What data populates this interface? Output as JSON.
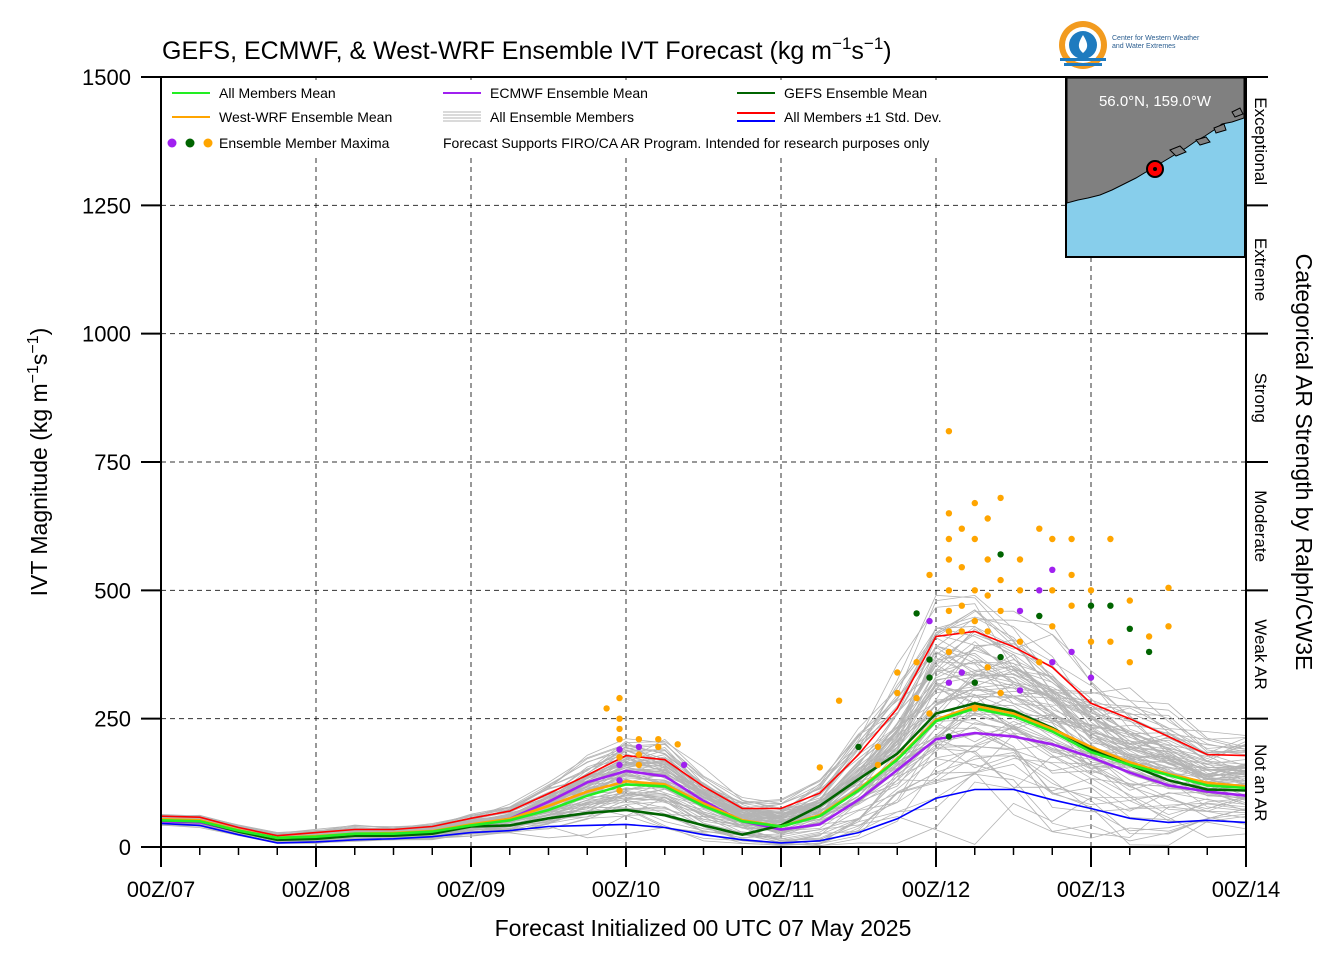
{
  "chart_data": {
    "type": "line",
    "title_main": "GEFS, ECMWF, & West-WRF Ensemble IVT Forecast (kg m",
    "title_sup1": "−1",
    "title_mid": "s",
    "title_sup2": "−1",
    "title_end": ")",
    "ylabel_main": "IVT Magnitude (kg m",
    "ylabel_sup1": "−1",
    "ylabel_mid": "s",
    "ylabel_sup2": "−1",
    "ylabel_end": ")",
    "xlabel": "Forecast Initialized 00 UTC 07 May 2025",
    "right_label": "Categorical AR Strength by Ralph/CW3E",
    "ylim": [
      0,
      1500
    ],
    "xlim": [
      0,
      168
    ],
    "yticks": [
      "0",
      "250",
      "500",
      "750",
      "1000",
      "1250",
      "1500"
    ],
    "ytick_values": [
      0,
      250,
      500,
      750,
      1000,
      1250,
      1500
    ],
    "xticks": [
      "00Z/07",
      "00Z/08",
      "00Z/09",
      "00Z/10",
      "00Z/11",
      "00Z/12",
      "00Z/13",
      "00Z/14"
    ],
    "xtick_hours": [
      0,
      24,
      48,
      72,
      96,
      120,
      144,
      168
    ],
    "grid": true,
    "categories_ar": [
      {
        "label": "Not an AR",
        "low": 0,
        "high": 250
      },
      {
        "label": "Weak AR",
        "low": 250,
        "high": 500
      },
      {
        "label": "Moderate",
        "low": 500,
        "high": 750
      },
      {
        "label": "Strong",
        "low": 750,
        "high": 1000
      },
      {
        "label": "Extreme",
        "low": 1000,
        "high": 1250
      },
      {
        "label": "Exceptional",
        "low": 1250,
        "high": 1500
      }
    ],
    "legend": {
      "all_mean": "All Members Mean",
      "ecmwf_mean": "ECMWF Ensemble Mean",
      "gefs_mean": "GEFS Ensemble Mean",
      "wrf_mean": "West-WRF Ensemble Mean",
      "all_members": "All Ensemble Members",
      "std": "All Members ±1 Std. Dev.",
      "maxima": "Ensemble Member Maxima",
      "note": "Forecast Supports FIRO/CA AR Program. Intended for research purposes only"
    },
    "colors": {
      "all_mean": "#22ee22",
      "ecmwf": "#a020f0",
      "gefs": "#006400",
      "wrf": "#ffa500",
      "members": "#b4b4b4",
      "std_upper": "#ff0000",
      "std_lower": "#0000ff"
    },
    "x": [
      0,
      6,
      12,
      18,
      24,
      30,
      36,
      42,
      48,
      54,
      60,
      66,
      72,
      78,
      84,
      90,
      96,
      102,
      108,
      114,
      120,
      126,
      132,
      138,
      144,
      150,
      156,
      162,
      168
    ],
    "series": [
      {
        "name": "All Members Mean",
        "key": "all_mean",
        "values": [
          52,
          50,
          32,
          18,
          20,
          26,
          26,
          30,
          42,
          52,
          72,
          100,
          122,
          118,
          80,
          50,
          40,
          60,
          110,
          170,
          245,
          270,
          255,
          225,
          185,
          160,
          140,
          120,
          115
        ]
      },
      {
        "name": "West-WRF Ensemble Mean",
        "key": "wrf",
        "values": [
          54,
          52,
          33,
          18,
          21,
          26,
          27,
          31,
          44,
          55,
          80,
          108,
          128,
          122,
          85,
          52,
          40,
          62,
          112,
          172,
          248,
          275,
          260,
          230,
          195,
          165,
          142,
          125,
          118
        ]
      },
      {
        "name": "ECMWF Ensemble Mean",
        "key": "ecmwf",
        "values": [
          50,
          48,
          30,
          16,
          18,
          24,
          24,
          28,
          42,
          55,
          88,
          126,
          148,
          138,
          90,
          50,
          34,
          44,
          92,
          150,
          210,
          222,
          215,
          200,
          175,
          145,
          120,
          108,
          100
        ]
      },
      {
        "name": "GEFS Ensemble Mean",
        "key": "gefs",
        "values": [
          52,
          50,
          30,
          14,
          16,
          22,
          22,
          26,
          40,
          42,
          56,
          66,
          72,
          62,
          42,
          24,
          42,
          80,
          132,
          182,
          260,
          280,
          265,
          232,
          190,
          160,
          130,
          112,
          110
        ]
      },
      {
        "name": "All Members +1 Std. Dev.",
        "key": "std_upper",
        "values": [
          60,
          58,
          38,
          22,
          28,
          34,
          34,
          40,
          56,
          70,
          104,
          140,
          178,
          170,
          118,
          75,
          75,
          105,
          180,
          270,
          410,
          420,
          390,
          350,
          280,
          250,
          215,
          180,
          178
        ]
      },
      {
        "name": "All Members -1 Std. Dev.",
        "key": "std_lower",
        "values": [
          46,
          42,
          24,
          8,
          10,
          14,
          16,
          20,
          28,
          32,
          40,
          42,
          44,
          38,
          24,
          14,
          8,
          12,
          28,
          55,
          95,
          112,
          112,
          92,
          75,
          56,
          48,
          52,
          48
        ]
      }
    ],
    "maxima": [
      {
        "x": 74,
        "y": 180,
        "c": "wrf"
      },
      {
        "x": 71,
        "y": 290,
        "c": "wrf"
      },
      {
        "x": 69,
        "y": 270,
        "c": "wrf"
      },
      {
        "x": 71,
        "y": 250,
        "c": "wrf"
      },
      {
        "x": 71,
        "y": 230,
        "c": "wrf"
      },
      {
        "x": 71,
        "y": 210,
        "c": "wrf"
      },
      {
        "x": 71,
        "y": 190,
        "c": "ecmwf"
      },
      {
        "x": 71,
        "y": 175,
        "c": "wrf"
      },
      {
        "x": 71,
        "y": 160,
        "c": "ecmwf"
      },
      {
        "x": 71,
        "y": 130,
        "c": "ecmwf"
      },
      {
        "x": 71,
        "y": 110,
        "c": "wrf"
      },
      {
        "x": 74,
        "y": 210,
        "c": "wrf"
      },
      {
        "x": 74,
        "y": 195,
        "c": "ecmwf"
      },
      {
        "x": 74,
        "y": 160,
        "c": "wrf"
      },
      {
        "x": 77,
        "y": 210,
        "c": "wrf"
      },
      {
        "x": 77,
        "y": 195,
        "c": "wrf"
      },
      {
        "x": 80,
        "y": 200,
        "c": "wrf"
      },
      {
        "x": 81,
        "y": 160,
        "c": "ecmwf"
      },
      {
        "x": 102,
        "y": 155,
        "c": "wrf"
      },
      {
        "x": 105,
        "y": 285,
        "c": "wrf"
      },
      {
        "x": 108,
        "y": 195,
        "c": "gefs"
      },
      {
        "x": 111,
        "y": 195,
        "c": "wrf"
      },
      {
        "x": 111,
        "y": 160,
        "c": "wrf"
      },
      {
        "x": 114,
        "y": 340,
        "c": "wrf"
      },
      {
        "x": 114,
        "y": 300,
        "c": "wrf"
      },
      {
        "x": 117,
        "y": 360,
        "c": "wrf"
      },
      {
        "x": 117,
        "y": 290,
        "c": "wrf"
      },
      {
        "x": 117,
        "y": 455,
        "c": "gefs"
      },
      {
        "x": 119,
        "y": 530,
        "c": "wrf"
      },
      {
        "x": 119,
        "y": 440,
        "c": "ecmwf"
      },
      {
        "x": 119,
        "y": 365,
        "c": "gefs"
      },
      {
        "x": 119,
        "y": 330,
        "c": "gefs"
      },
      {
        "x": 119,
        "y": 260,
        "c": "wrf"
      },
      {
        "x": 122,
        "y": 810,
        "c": "wrf"
      },
      {
        "x": 122,
        "y": 650,
        "c": "wrf"
      },
      {
        "x": 122,
        "y": 600,
        "c": "wrf"
      },
      {
        "x": 122,
        "y": 560,
        "c": "wrf"
      },
      {
        "x": 122,
        "y": 500,
        "c": "wrf"
      },
      {
        "x": 122,
        "y": 460,
        "c": "wrf"
      },
      {
        "x": 122,
        "y": 420,
        "c": "wrf"
      },
      {
        "x": 122,
        "y": 380,
        "c": "wrf"
      },
      {
        "x": 122,
        "y": 320,
        "c": "ecmwf"
      },
      {
        "x": 122,
        "y": 215,
        "c": "gefs"
      },
      {
        "x": 124,
        "y": 620,
        "c": "wrf"
      },
      {
        "x": 124,
        "y": 545,
        "c": "wrf"
      },
      {
        "x": 124,
        "y": 470,
        "c": "wrf"
      },
      {
        "x": 124,
        "y": 420,
        "c": "wrf"
      },
      {
        "x": 124,
        "y": 340,
        "c": "ecmwf"
      },
      {
        "x": 126,
        "y": 670,
        "c": "wrf"
      },
      {
        "x": 126,
        "y": 600,
        "c": "wrf"
      },
      {
        "x": 126,
        "y": 500,
        "c": "wrf"
      },
      {
        "x": 126,
        "y": 440,
        "c": "wrf"
      },
      {
        "x": 126,
        "y": 320,
        "c": "gefs"
      },
      {
        "x": 126,
        "y": 270,
        "c": "wrf"
      },
      {
        "x": 128,
        "y": 640,
        "c": "wrf"
      },
      {
        "x": 128,
        "y": 560,
        "c": "wrf"
      },
      {
        "x": 128,
        "y": 490,
        "c": "wrf"
      },
      {
        "x": 128,
        "y": 420,
        "c": "wrf"
      },
      {
        "x": 128,
        "y": 350,
        "c": "wrf"
      },
      {
        "x": 130,
        "y": 680,
        "c": "wrf"
      },
      {
        "x": 130,
        "y": 570,
        "c": "gefs"
      },
      {
        "x": 130,
        "y": 520,
        "c": "wrf"
      },
      {
        "x": 130,
        "y": 460,
        "c": "wrf"
      },
      {
        "x": 130,
        "y": 370,
        "c": "gefs"
      },
      {
        "x": 130,
        "y": 300,
        "c": "wrf"
      },
      {
        "x": 133,
        "y": 560,
        "c": "wrf"
      },
      {
        "x": 133,
        "y": 500,
        "c": "wrf"
      },
      {
        "x": 133,
        "y": 460,
        "c": "ecmwf"
      },
      {
        "x": 133,
        "y": 400,
        "c": "wrf"
      },
      {
        "x": 133,
        "y": 305,
        "c": "ecmwf"
      },
      {
        "x": 136,
        "y": 620,
        "c": "wrf"
      },
      {
        "x": 136,
        "y": 500,
        "c": "ecmwf"
      },
      {
        "x": 136,
        "y": 450,
        "c": "gefs"
      },
      {
        "x": 136,
        "y": 360,
        "c": "wrf"
      },
      {
        "x": 138,
        "y": 600,
        "c": "wrf"
      },
      {
        "x": 138,
        "y": 540,
        "c": "ecmwf"
      },
      {
        "x": 138,
        "y": 500,
        "c": "wrf"
      },
      {
        "x": 138,
        "y": 430,
        "c": "wrf"
      },
      {
        "x": 138,
        "y": 360,
        "c": "ecmwf"
      },
      {
        "x": 141,
        "y": 600,
        "c": "wrf"
      },
      {
        "x": 141,
        "y": 530,
        "c": "wrf"
      },
      {
        "x": 141,
        "y": 470,
        "c": "wrf"
      },
      {
        "x": 141,
        "y": 380,
        "c": "ecmwf"
      },
      {
        "x": 144,
        "y": 500,
        "c": "wrf"
      },
      {
        "x": 144,
        "y": 470,
        "c": "gefs"
      },
      {
        "x": 144,
        "y": 400,
        "c": "wrf"
      },
      {
        "x": 144,
        "y": 330,
        "c": "ecmwf"
      },
      {
        "x": 147,
        "y": 600,
        "c": "wrf"
      },
      {
        "x": 147,
        "y": 470,
        "c": "gefs"
      },
      {
        "x": 147,
        "y": 400,
        "c": "wrf"
      },
      {
        "x": 150,
        "y": 480,
        "c": "wrf"
      },
      {
        "x": 150,
        "y": 425,
        "c": "gefs"
      },
      {
        "x": 150,
        "y": 360,
        "c": "wrf"
      },
      {
        "x": 153,
        "y": 410,
        "c": "wrf"
      },
      {
        "x": 153,
        "y": 380,
        "c": "gefs"
      },
      {
        "x": 156,
        "y": 505,
        "c": "wrf"
      },
      {
        "x": 156,
        "y": 430,
        "c": "wrf"
      }
    ]
  },
  "inset": {
    "coords": "56.0°N, 159.0°W"
  },
  "logo": {
    "line1": "Center for Western Weather",
    "line2": "and Water Extremes"
  }
}
